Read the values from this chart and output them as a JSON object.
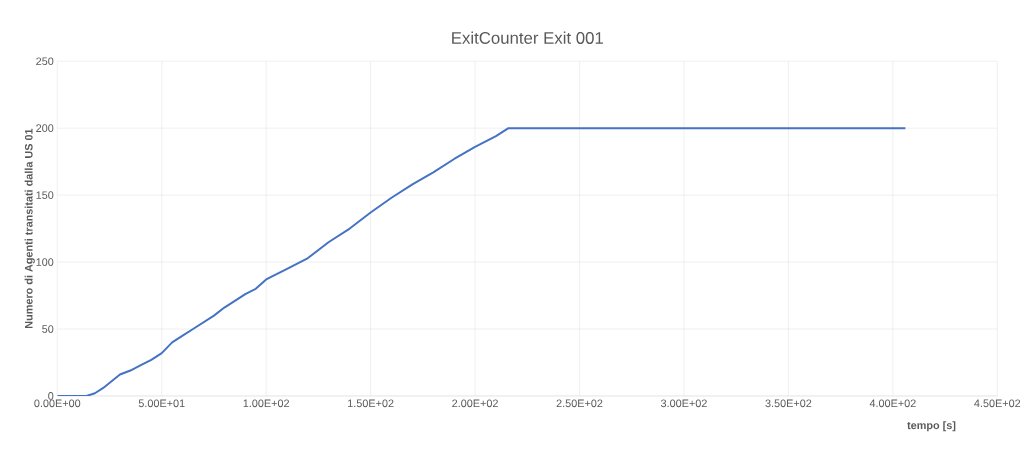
{
  "chart_data": {
    "type": "line",
    "title": "ExitCounter Exit 001",
    "xlabel": "tempo [s]",
    "ylabel": "Numero di Agenti transitati dalla US 01",
    "x": [
      0,
      14,
      18,
      22,
      26,
      30,
      35,
      40,
      45,
      50,
      55,
      60,
      65,
      70,
      75,
      80,
      85,
      90,
      95,
      100,
      110,
      120,
      130,
      140,
      150,
      160,
      170,
      180,
      190,
      200,
      210,
      216,
      406
    ],
    "values": [
      0,
      0,
      2,
      6,
      11,
      16,
      19,
      23,
      27,
      32,
      40,
      45,
      50,
      55,
      60,
      66,
      71,
      76,
      80,
      87,
      95,
      103,
      115,
      125,
      137,
      148,
      158,
      167,
      177,
      186,
      194,
      200,
      200
    ],
    "color": "#4472c4",
    "xlim": [
      0,
      450
    ],
    "ylim": [
      0,
      250
    ],
    "xticks": [
      {
        "value": 0,
        "label": "0.00E+00"
      },
      {
        "value": 50,
        "label": "5.00E+01"
      },
      {
        "value": 100,
        "label": "1.00E+02"
      },
      {
        "value": 150,
        "label": "1.50E+02"
      },
      {
        "value": 200,
        "label": "2.00E+02"
      },
      {
        "value": 250,
        "label": "2.50E+02"
      },
      {
        "value": 300,
        "label": "3.00E+02"
      },
      {
        "value": 350,
        "label": "3.50E+02"
      },
      {
        "value": 400,
        "label": "4.00E+02"
      },
      {
        "value": 450,
        "label": "4.50E+02"
      }
    ],
    "yticks": [
      0,
      50,
      100,
      150,
      200,
      250
    ],
    "grid": true
  }
}
